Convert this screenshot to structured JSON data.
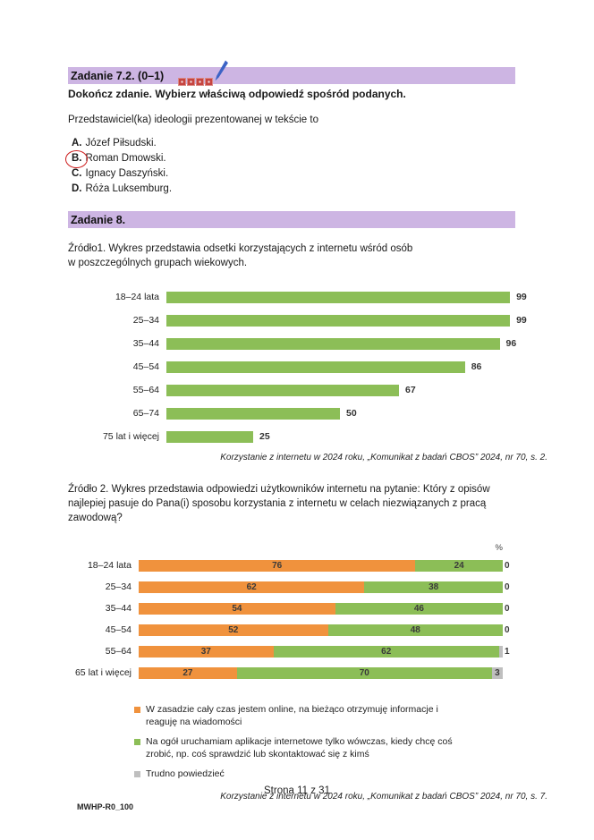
{
  "task72": {
    "header": "Zadanie 7.2. (0–1)",
    "instruction": "Dokończ zdanie. Wybierz właściwą odpowiedź spośród podanych.",
    "stem": "Przedstawiciel(ka) ideologii prezentowanej w tekście to",
    "options": [
      {
        "letter": "A.",
        "text": "Józef Piłsudski.",
        "selected": false
      },
      {
        "letter": "B.",
        "text": "Roman Dmowski.",
        "selected": true
      },
      {
        "letter": "C.",
        "text": "Ignacy Daszyński.",
        "selected": false
      },
      {
        "letter": "D.",
        "text": "Róża Luksemburg.",
        "selected": false
      }
    ]
  },
  "task8": {
    "header": "Zadanie 8.",
    "source1": "Źródło1. Wykres przedstawia odsetki korzystających z internetu wśród osób\nw poszczególnych grupach wiekowych.",
    "source2": "Źródło 2. Wykres przedstawia odpowiedzi użytkowników internetu na pytanie: Który z opisów\nnajlepiej pasuje do Pana(i) sposobu korzystania z internetu w celach niezwiązanych z pracą\nzawodową?"
  },
  "chart_data": [
    {
      "type": "bar",
      "orientation": "horizontal",
      "categories": [
        "18–24 lata",
        "25–34",
        "35–44",
        "45–54",
        "55–64",
        "65–74",
        "75 lat i więcej"
      ],
      "values": [
        99,
        99,
        96,
        86,
        67,
        50,
        25
      ],
      "bar_color": "#8CBE57",
      "xlim": [
        0,
        100
      ],
      "grid": false,
      "caption": "Korzystanie z internetu w 2024 roku, „Komunikat z badań CBOS” 2024, nr 70, s. 2."
    },
    {
      "type": "bar",
      "orientation": "horizontal",
      "stacked": true,
      "unit_label": "%",
      "categories": [
        "18–24 lata",
        "25–34",
        "35–44",
        "45–54",
        "55–64",
        "65 lat i więcej"
      ],
      "series": [
        {
          "name": "W zasadzie cały czas jestem online, na bieżąco otrzymuję informacje i reaguję na wiadomości",
          "color": "#F0923D",
          "values": [
            76,
            62,
            54,
            52,
            37,
            27
          ]
        },
        {
          "name": "Na ogół uruchamiam aplikacje internetowe tylko wówczas, kiedy chcę coś zrobić,  np. coś sprawdzić lub skontaktować się z kimś",
          "color": "#8CBE57",
          "values": [
            24,
            38,
            46,
            48,
            62,
            70
          ]
        },
        {
          "name": "Trudno powiedzieć",
          "color": "#BFBFBF",
          "values": [
            0,
            0,
            0,
            0,
            1,
            3
          ]
        }
      ],
      "xlim": [
        0,
        100
      ],
      "grid": false,
      "legend_position": "bottom",
      "caption": "Korzystanie z internetu w 2024 roku, „Komunikat z badań CBOS” 2024, nr 70, s. 7."
    }
  ],
  "footer": {
    "page_number": "Strona 11 z 31",
    "code": "MWHP-R0_100"
  }
}
